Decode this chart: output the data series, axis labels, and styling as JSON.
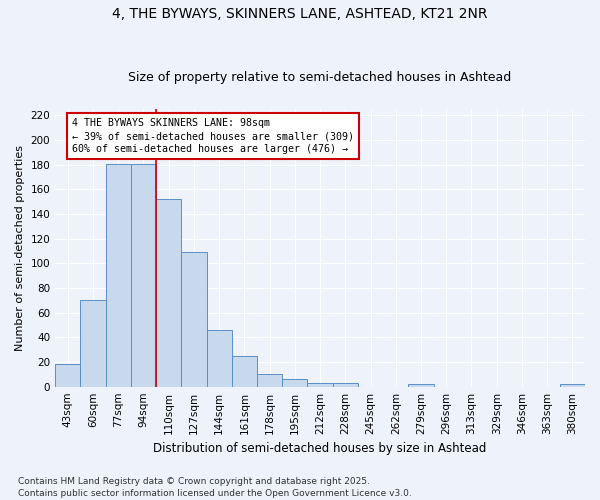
{
  "title": "4, THE BYWAYS, SKINNERS LANE, ASHTEAD, KT21 2NR",
  "subtitle": "Size of property relative to semi-detached houses in Ashtead",
  "xlabel": "Distribution of semi-detached houses by size in Ashtead",
  "ylabel": "Number of semi-detached properties",
  "bar_color": "#c8d8ed",
  "bar_edge_color": "#5b8fc9",
  "categories": [
    "43sqm",
    "60sqm",
    "77sqm",
    "94sqm",
    "110sqm",
    "127sqm",
    "144sqm",
    "161sqm",
    "178sqm",
    "195sqm",
    "212sqm",
    "228sqm",
    "245sqm",
    "262sqm",
    "279sqm",
    "296sqm",
    "313sqm",
    "329sqm",
    "346sqm",
    "363sqm",
    "380sqm"
  ],
  "values": [
    18,
    70,
    181,
    181,
    152,
    109,
    46,
    25,
    10,
    6,
    3,
    3,
    0,
    0,
    2,
    0,
    0,
    0,
    0,
    0,
    2
  ],
  "annotation_text": "4 THE BYWAYS SKINNERS LANE: 98sqm\n← 39% of semi-detached houses are smaller (309)\n60% of semi-detached houses are larger (476) →",
  "annotation_box_color": "#ffffff",
  "annotation_box_edge_color": "#cc0000",
  "ylim": [
    0,
    225
  ],
  "yticks": [
    0,
    20,
    40,
    60,
    80,
    100,
    120,
    140,
    160,
    180,
    200,
    220
  ],
  "footnote": "Contains HM Land Registry data © Crown copyright and database right 2025.\nContains public sector information licensed under the Open Government Licence v3.0.",
  "background_color": "#eef2fb",
  "plot_bg_color": "#eef2fb",
  "grid_color": "#ffffff",
  "title_fontsize": 10,
  "subtitle_fontsize": 9,
  "xlabel_fontsize": 8.5,
  "ylabel_fontsize": 8,
  "tick_fontsize": 7.5,
  "footnote_fontsize": 6.5,
  "red_line_index": 3.5
}
